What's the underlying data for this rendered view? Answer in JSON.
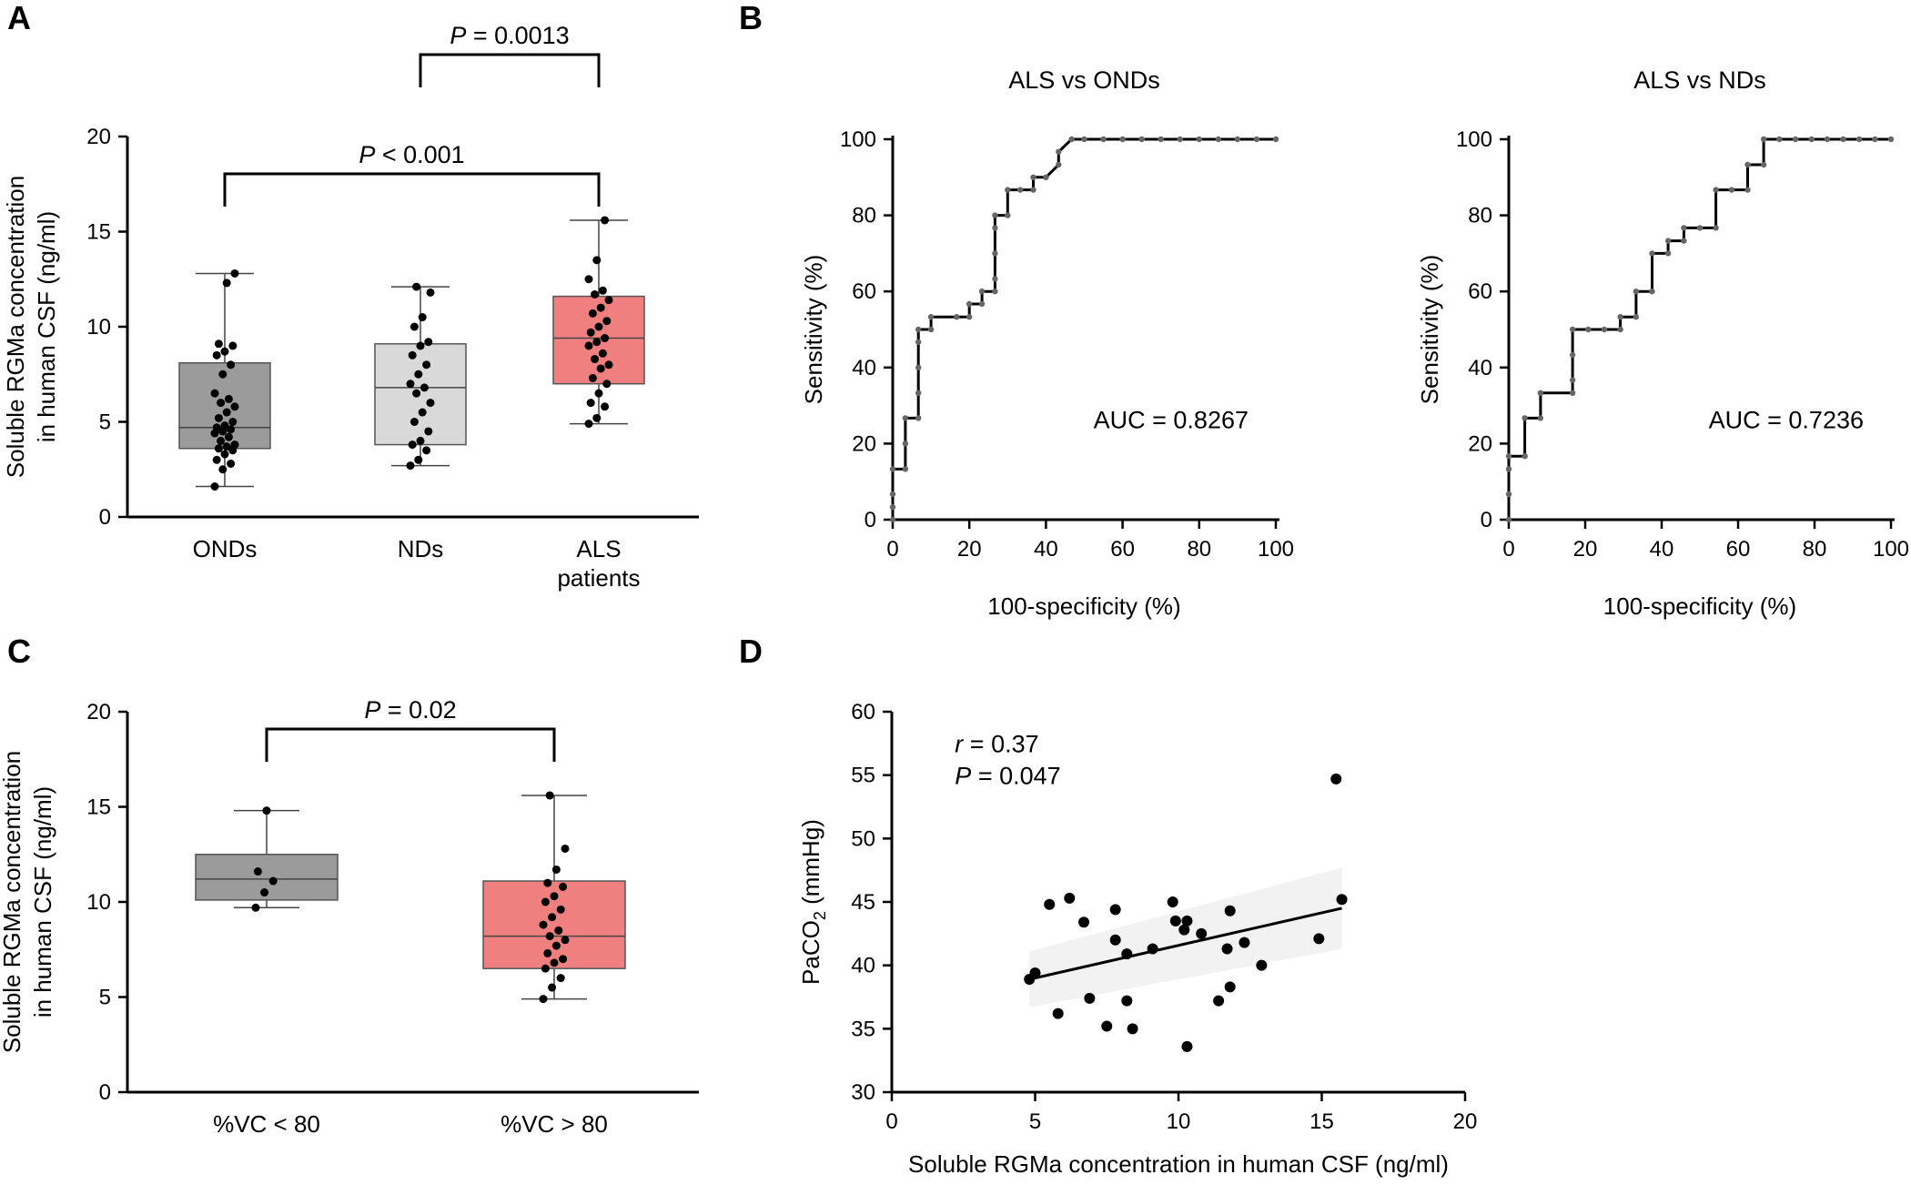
{
  "panels": {
    "A": "A",
    "B": "B",
    "C": "C",
    "D": "D"
  },
  "colors": {
    "dark_gray": "#9b9b9b",
    "light_gray": "#d9d9d9",
    "red": "#f08080"
  },
  "chart_data": [
    {
      "id": "A",
      "type": "box",
      "ylabel_line1": "Soluble RGMa concentration",
      "ylabel_line2": "in human CSF (ng/ml)",
      "ylim": [
        0,
        20
      ],
      "yticks": [
        "0",
        "5",
        "10",
        "15",
        "20"
      ],
      "groups": [
        {
          "label": "ONDs",
          "label2": "",
          "color": "#9b9b9b",
          "min": 1.6,
          "q1": 3.6,
          "median": 4.7,
          "q3": 8.1,
          "max": 12.8,
          "points": [
            1.6,
            2.5,
            2.8,
            3.0,
            3.3,
            3.5,
            3.6,
            3.7,
            3.8,
            4.0,
            4.2,
            4.4,
            4.5,
            4.6,
            4.7,
            4.8,
            5.0,
            5.2,
            5.5,
            5.8,
            6.0,
            6.2,
            6.5,
            7.5,
            8.0,
            8.5,
            8.7,
            9.0,
            9.1,
            12.3,
            12.8
          ]
        },
        {
          "label": "NDs",
          "label2": "",
          "color": "#d9d9d9",
          "min": 2.7,
          "q1": 3.8,
          "median": 6.8,
          "q3": 9.1,
          "max": 12.1,
          "points": [
            2.7,
            3.0,
            3.5,
            3.8,
            4.0,
            4.5,
            5.0,
            5.5,
            6.0,
            6.5,
            6.8,
            7.0,
            7.5,
            8.0,
            8.5,
            9.0,
            9.2,
            10.0,
            10.5,
            11.8,
            12.1
          ]
        },
        {
          "label": "ALS",
          "label2": "patients",
          "color": "#f08080",
          "min": 4.9,
          "q1": 7.0,
          "median": 9.4,
          "q3": 11.6,
          "max": 15.6,
          "points": [
            4.9,
            5.2,
            5.8,
            6.0,
            6.5,
            7.0,
            7.3,
            7.8,
            8.0,
            8.3,
            8.6,
            9.0,
            9.2,
            9.4,
            9.7,
            10.0,
            10.3,
            10.7,
            11.0,
            11.4,
            11.7,
            11.9,
            12.5,
            13.5,
            15.6
          ]
        }
      ],
      "comparisons": [
        {
          "stat": "P",
          "text": " = 0.0013",
          "from": 1,
          "to": 2
        },
        {
          "stat": "P",
          "text": " < 0.001",
          "from": 0,
          "to": 2
        }
      ]
    },
    {
      "id": "B1",
      "type": "line",
      "title": "ALS vs ONDs",
      "xlabel": "100-specificity (%)",
      "ylabel": "Sensitivity (%)",
      "xlim": [
        0,
        100
      ],
      "ylim": [
        0,
        100
      ],
      "xticks": [
        "0",
        "20",
        "40",
        "60",
        "80",
        "100"
      ],
      "yticks": [
        "0",
        "20",
        "40",
        "60",
        "80",
        "100"
      ],
      "auc": "AUC = 0.8267",
      "x": [
        0,
        0,
        0,
        0,
        3.3,
        3.3,
        3.3,
        6.7,
        6.7,
        6.7,
        6.7,
        6.7,
        10,
        10,
        16.7,
        20,
        20,
        23.3,
        23.3,
        26.7,
        26.7,
        26.7,
        26.7,
        26.7,
        30,
        30,
        33.3,
        36.7,
        36.7,
        40,
        43.3,
        43.3,
        46.7,
        50,
        55,
        60,
        65,
        70,
        75,
        80,
        85,
        90,
        95,
        100
      ],
      "y": [
        0,
        3.3,
        6.7,
        13.3,
        13.3,
        20,
        26.7,
        26.7,
        33.3,
        40,
        46.7,
        50,
        50,
        53.3,
        53.3,
        53.3,
        56.7,
        56.7,
        60,
        60,
        63.3,
        70,
        76.7,
        80,
        80,
        86.7,
        86.7,
        86.7,
        90,
        90,
        93.3,
        96.7,
        100,
        100,
        100,
        100,
        100,
        100,
        100,
        100,
        100,
        100,
        100,
        100
      ]
    },
    {
      "id": "B2",
      "type": "line",
      "title": "ALS vs NDs",
      "xlabel": "100-specificity (%)",
      "ylabel": "Sensitivity (%)",
      "xlim": [
        0,
        100
      ],
      "ylim": [
        0,
        100
      ],
      "xticks": [
        "0",
        "20",
        "40",
        "60",
        "80",
        "100"
      ],
      "yticks": [
        "0",
        "20",
        "40",
        "60",
        "80",
        "100"
      ],
      "auc": "AUC = 0.7236",
      "x": [
        0,
        0,
        0,
        0,
        4.2,
        4.2,
        8.3,
        8.3,
        16.7,
        16.7,
        16.7,
        16.7,
        20.8,
        25,
        29.2,
        29.2,
        33.3,
        33.3,
        37.5,
        37.5,
        41.7,
        41.7,
        45.8,
        45.8,
        50,
        54.2,
        54.2,
        58.3,
        62.5,
        62.5,
        66.7,
        66.7,
        70.8,
        75,
        79.2,
        83.3,
        87.5,
        91.7,
        95.8,
        100
      ],
      "y": [
        0,
        6.7,
        13.3,
        16.7,
        16.7,
        26.7,
        26.7,
        33.3,
        33.3,
        36.7,
        43.3,
        50,
        50,
        50,
        50,
        53.3,
        53.3,
        60,
        60,
        70,
        70,
        73.3,
        73.3,
        76.7,
        76.7,
        76.7,
        86.7,
        86.7,
        86.7,
        93.3,
        93.3,
        100,
        100,
        100,
        100,
        100,
        100,
        100,
        100,
        100
      ]
    },
    {
      "id": "C",
      "type": "box",
      "ylabel_line1": "Soluble RGMa concentration",
      "ylabel_line2": "in human CSF (ng/ml)",
      "ylim": [
        0,
        20
      ],
      "yticks": [
        "0",
        "5",
        "10",
        "15",
        "20"
      ],
      "groups": [
        {
          "label": "%VC < 80",
          "label2": "",
          "color": "#9b9b9b",
          "min": 9.7,
          "q1": 10.1,
          "median": 11.2,
          "q3": 12.5,
          "max": 14.8,
          "points": [
            9.7,
            10.5,
            11.1,
            11.6,
            14.8
          ]
        },
        {
          "label": "%VC > 80",
          "label2": "",
          "color": "#f08080",
          "min": 4.9,
          "q1": 6.5,
          "median": 8.2,
          "q3": 11.1,
          "max": 15.6,
          "points": [
            4.9,
            5.5,
            6.0,
            6.5,
            6.8,
            7.0,
            7.3,
            7.7,
            8.0,
            8.2,
            8.5,
            8.8,
            9.2,
            9.6,
            10.0,
            10.3,
            10.8,
            11.0,
            11.7,
            12.8,
            15.6
          ]
        }
      ],
      "comparisons": [
        {
          "stat": "P",
          "text": " = 0.02",
          "from": 0,
          "to": 1
        }
      ]
    },
    {
      "id": "D",
      "type": "scatter",
      "xlabel": "Soluble RGMa concentration in human CSF (ng/ml)",
      "ylabel_main": "PaCO",
      "ylabel_sub": "2",
      "ylabel_unit": " (mmHg)",
      "xlim": [
        0,
        20
      ],
      "ylim": [
        30,
        60
      ],
      "xticks": [
        "0",
        "5",
        "10",
        "15",
        "20"
      ],
      "yticks": [
        "30",
        "35",
        "40",
        "45",
        "50",
        "55",
        "60"
      ],
      "r_label": "r",
      "r_text": " = 0.37",
      "p_label": "P",
      "p_text": " = 0.047",
      "points": [
        [
          4.8,
          38.9
        ],
        [
          5.0,
          39.4
        ],
        [
          5.5,
          44.8
        ],
        [
          5.8,
          36.2
        ],
        [
          6.2,
          45.3
        ],
        [
          6.7,
          43.4
        ],
        [
          6.9,
          37.4
        ],
        [
          7.5,
          35.2
        ],
        [
          7.8,
          44.4
        ],
        [
          7.8,
          42.0
        ],
        [
          8.2,
          37.2
        ],
        [
          8.2,
          40.9
        ],
        [
          8.4,
          35.0
        ],
        [
          9.1,
          41.3
        ],
        [
          9.8,
          45.0
        ],
        [
          9.9,
          43.5
        ],
        [
          10.2,
          42.8
        ],
        [
          10.3,
          43.5
        ],
        [
          10.3,
          33.6
        ],
        [
          10.8,
          42.5
        ],
        [
          11.7,
          41.3
        ],
        [
          11.8,
          38.3
        ],
        [
          11.8,
          44.3
        ],
        [
          11.4,
          37.2
        ],
        [
          12.3,
          41.8
        ],
        [
          12.9,
          40.0
        ],
        [
          14.9,
          42.1
        ],
        [
          15.5,
          54.7
        ],
        [
          15.7,
          45.2
        ]
      ],
      "fit": {
        "x": [
          4.8,
          15.7
        ],
        "y": [
          38.9,
          44.5
        ]
      }
    }
  ]
}
